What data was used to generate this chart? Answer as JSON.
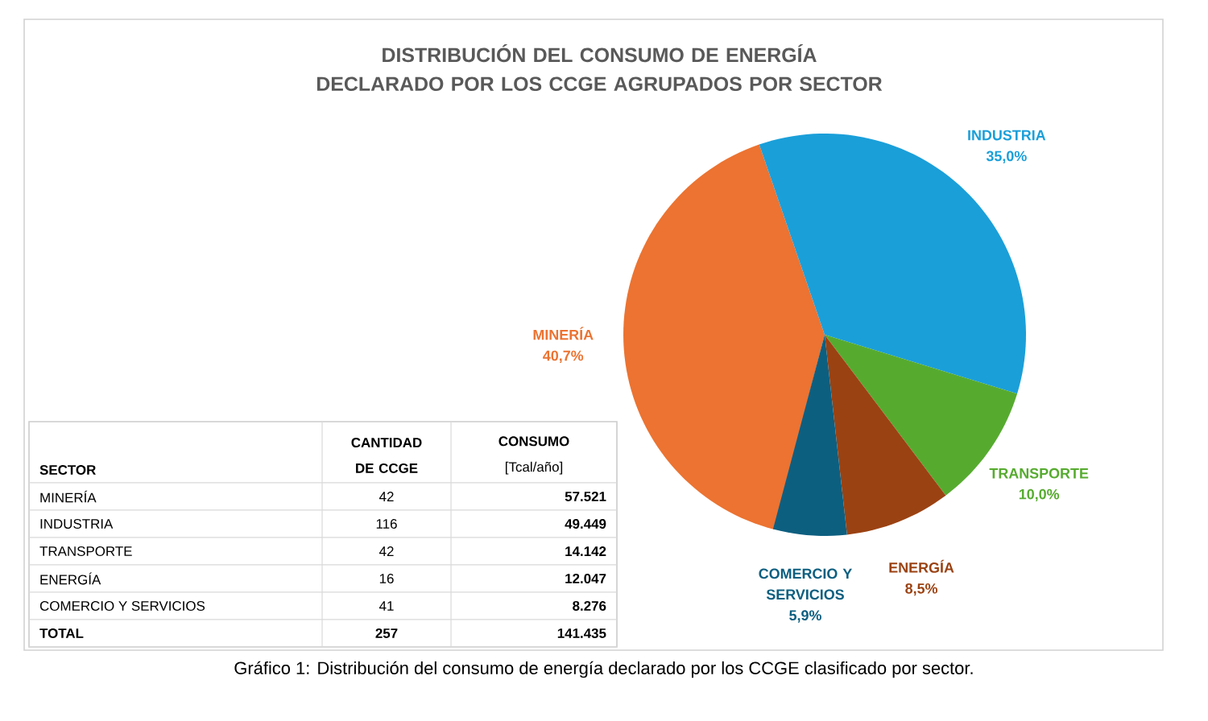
{
  "chart_data": [
    {
      "type": "pie",
      "title": "DISTRIBUCIÓN DEL CONSUMO DE ENERGÍA DECLARADO POR LOS CCGE AGRUPADOS POR SECTOR",
      "categories": [
        "MINERÍA",
        "INDUSTRIA",
        "TRANSPORTE",
        "ENERGÍA",
        "COMERCIO Y SERVICIOS"
      ],
      "values": [
        40.7,
        35.0,
        10.0,
        8.5,
        5.9
      ],
      "value_labels": [
        "40,7%",
        "35,0%",
        "10,0%",
        "8,5%",
        "5,9%"
      ],
      "colors": [
        "#ec7331",
        "#1a9fd9",
        "#56ab2f",
        "#9b4212",
        "#0d5f80"
      ],
      "annotations": [
        "Gráfico 1: Distribución del consumo de energía declarado por los CCGE clasificado por sector."
      ]
    },
    {
      "type": "other",
      "xlabel": "SECTOR",
      "data_labels": true,
      "categories": [
        "MINERÍA",
        "INDUSTRIA",
        "TRANSPORTE",
        "ENERGÍA",
        "COMERCIO Y SERVICIOS",
        "TOTAL"
      ],
      "series": [
        {
          "name": "CANTIDAD DE CCGE",
          "values": [
            42,
            116,
            42,
            16,
            41,
            257
          ],
          "value_labels": [
            "42",
            "116",
            "42",
            "16",
            "41",
            "257"
          ]
        },
        {
          "name": "**CONSUMO** [Tcal/año]",
          "values": [
            57521,
            49449,
            14142,
            12047,
            8276,
            141435
          ],
          "value_labels": [
            "57.521",
            "49.449",
            "14.142",
            "12.047",
            "8.276",
            "141.435"
          ]
        }
      ]
    }
  ]
}
